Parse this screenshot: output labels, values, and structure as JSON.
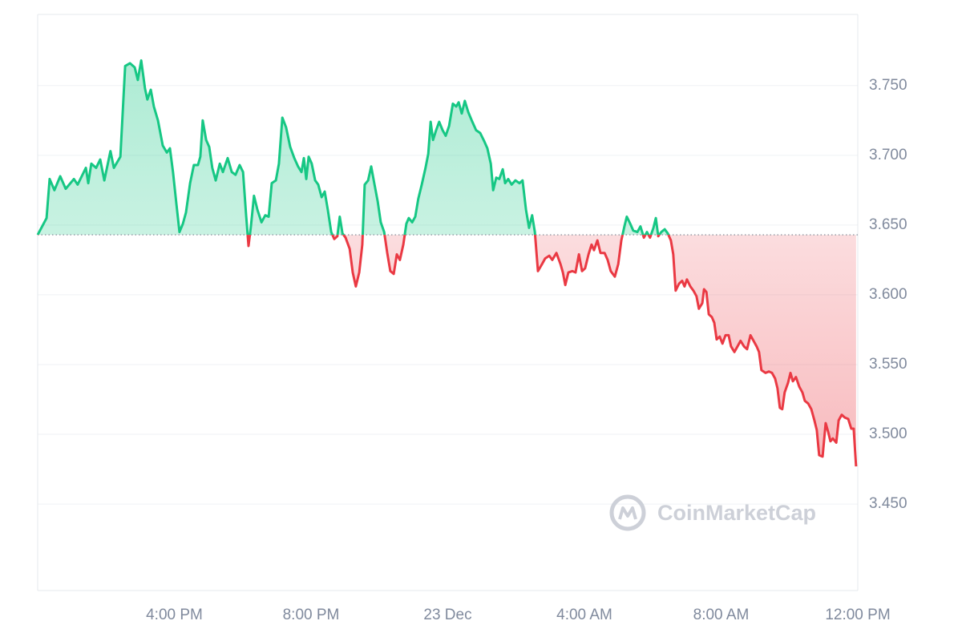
{
  "chart_data": {
    "type": "line",
    "watermark": "CoinMarketCap",
    "baseline": 3.643,
    "color_up": "#16c784",
    "color_down": "#ea3943",
    "xlim": [
      0,
      24
    ],
    "xticks": [
      {
        "value": 4,
        "label": "4:00 PM"
      },
      {
        "value": 8,
        "label": "8:00 PM"
      },
      {
        "value": 12,
        "label": "23 Dec"
      },
      {
        "value": 16,
        "label": "4:00 AM"
      },
      {
        "value": 20,
        "label": "8:00 AM"
      },
      {
        "value": 24,
        "label": "12:00 PM"
      }
    ],
    "ylim": [
      3.388,
      3.801
    ],
    "yticks": [
      {
        "value": 3.45,
        "label": "3.450"
      },
      {
        "value": 3.5,
        "label": "3.500"
      },
      {
        "value": 3.55,
        "label": "3.550"
      },
      {
        "value": 3.6,
        "label": "3.600"
      },
      {
        "value": 3.65,
        "label": "3.650"
      },
      {
        "value": 3.7,
        "label": "3.700"
      },
      {
        "value": 3.75,
        "label": "3.750"
      }
    ],
    "grid": true,
    "x": [
      0,
      0.26,
      0.35,
      0.49,
      0.66,
      0.82,
      1.06,
      1.17,
      1.41,
      1.48,
      1.57,
      1.71,
      1.83,
      1.95,
      2.13,
      2.23,
      2.42,
      2.56,
      2.7,
      2.84,
      2.93,
      3.03,
      3.14,
      3.21,
      3.31,
      3.4,
      3.52,
      3.66,
      3.78,
      3.87,
      3.96,
      4.06,
      4.15,
      4.25,
      4.34,
      4.46,
      4.57,
      4.69,
      4.76,
      4.83,
      4.93,
      5.02,
      5.11,
      5.21,
      5.33,
      5.42,
      5.56,
      5.68,
      5.79,
      5.91,
      6.01,
      6.1,
      6.17,
      6.24,
      6.33,
      6.43,
      6.55,
      6.66,
      6.76,
      6.85,
      6.97,
      7.06,
      7.16,
      7.27,
      7.39,
      7.51,
      7.62,
      7.72,
      7.79,
      7.86,
      7.93,
      8.02,
      8.12,
      8.21,
      8.31,
      8.4,
      8.49,
      8.59,
      8.68,
      8.77,
      8.84,
      8.92,
      9.01,
      9.13,
      9.22,
      9.31,
      9.41,
      9.5,
      9.57,
      9.67,
      9.76,
      9.85,
      9.95,
      10.04,
      10.14,
      10.23,
      10.32,
      10.42,
      10.51,
      10.6,
      10.7,
      10.79,
      10.86,
      10.96,
      11.05,
      11.14,
      11.24,
      11.35,
      11.43,
      11.5,
      11.57,
      11.66,
      11.75,
      11.85,
      11.94,
      12.04,
      12.15,
      12.25,
      12.32,
      12.41,
      12.5,
      12.6,
      12.72,
      12.83,
      12.95,
      13.07,
      13.16,
      13.26,
      13.33,
      13.42,
      13.51,
      13.61,
      13.68,
      13.77,
      13.87,
      13.98,
      14.1,
      14.19,
      14.29,
      14.38,
      14.47,
      14.55,
      14.64,
      14.76,
      14.85,
      14.97,
      15.06,
      15.18,
      15.3,
      15.37,
      15.44,
      15.53,
      15.65,
      15.74,
      15.84,
      15.93,
      16.02,
      16.12,
      16.21,
      16.28,
      16.38,
      16.47,
      16.59,
      16.68,
      16.77,
      16.89,
      16.99,
      17.08,
      17.17,
      17.24,
      17.34,
      17.43,
      17.55,
      17.64,
      17.74,
      17.83,
      17.92,
      18.02,
      18.09,
      18.16,
      18.25,
      18.35,
      18.44,
      18.53,
      18.6,
      18.67,
      18.77,
      18.86,
      18.93,
      19.0,
      19.1,
      19.19,
      19.28,
      19.35,
      19.45,
      19.5,
      19.57,
      19.64,
      19.73,
      19.8,
      19.87,
      19.96,
      20.04,
      20.13,
      20.22,
      20.29,
      20.39,
      20.48,
      20.57,
      20.67,
      20.76,
      20.86,
      20.95,
      21.04,
      21.11,
      21.18,
      21.3,
      21.4,
      21.49,
      21.58,
      21.65,
      21.72,
      21.79,
      21.86,
      21.96,
      22.03,
      22.1,
      22.19,
      22.29,
      22.38,
      22.45,
      22.55,
      22.64,
      22.73,
      22.8,
      22.87,
      22.97,
      23.06,
      23.13,
      23.2,
      23.27,
      23.37,
      23.44,
      23.53,
      23.62,
      23.72,
      23.81,
      23.88,
      23.95
    ],
    "values": [
      3.643,
      3.655,
      3.683,
      3.675,
      3.685,
      3.676,
      3.683,
      3.679,
      3.691,
      3.68,
      3.694,
      3.691,
      3.697,
      3.682,
      3.703,
      3.691,
      3.699,
      3.764,
      3.766,
      3.763,
      3.754,
      3.768,
      3.748,
      3.74,
      3.747,
      3.735,
      3.725,
      3.707,
      3.702,
      3.705,
      3.688,
      3.665,
      3.645,
      3.651,
      3.659,
      3.68,
      3.693,
      3.693,
      3.699,
      3.725,
      3.711,
      3.706,
      3.691,
      3.682,
      3.694,
      3.688,
      3.698,
      3.688,
      3.686,
      3.693,
      3.688,
      3.657,
      3.635,
      3.649,
      3.671,
      3.661,
      3.652,
      3.657,
      3.656,
      3.68,
      3.682,
      3.694,
      3.727,
      3.72,
      3.706,
      3.698,
      3.692,
      3.688,
      3.698,
      3.683,
      3.699,
      3.694,
      3.682,
      3.679,
      3.67,
      3.674,
      3.661,
      3.645,
      3.64,
      3.642,
      3.656,
      3.644,
      3.641,
      3.633,
      3.616,
      3.606,
      3.616,
      3.636,
      3.679,
      3.682,
      3.692,
      3.68,
      3.667,
      3.652,
      3.645,
      3.63,
      3.617,
      3.615,
      3.629,
      3.625,
      3.636,
      3.651,
      3.655,
      3.652,
      3.656,
      3.669,
      3.679,
      3.691,
      3.701,
      3.724,
      3.711,
      3.718,
      3.724,
      3.718,
      3.714,
      3.721,
      3.737,
      3.735,
      3.738,
      3.73,
      3.739,
      3.731,
      3.724,
      3.718,
      3.716,
      3.71,
      3.705,
      3.694,
      3.675,
      3.684,
      3.683,
      3.69,
      3.68,
      3.683,
      3.679,
      3.682,
      3.68,
      3.682,
      3.661,
      3.648,
      3.657,
      3.645,
      3.617,
      3.622,
      3.626,
      3.628,
      3.625,
      3.63,
      3.622,
      3.616,
      3.607,
      3.616,
      3.617,
      3.616,
      3.629,
      3.617,
      3.619,
      3.629,
      3.636,
      3.632,
      3.639,
      3.63,
      3.63,
      3.625,
      3.617,
      3.613,
      3.622,
      3.639,
      3.649,
      3.656,
      3.651,
      3.646,
      3.645,
      3.649,
      3.641,
      3.645,
      3.641,
      3.648,
      3.655,
      3.642,
      3.645,
      3.647,
      3.644,
      3.639,
      3.629,
      3.603,
      3.608,
      3.61,
      3.606,
      3.611,
      3.606,
      3.603,
      3.599,
      3.59,
      3.594,
      3.604,
      3.602,
      3.586,
      3.584,
      3.58,
      3.568,
      3.57,
      3.565,
      3.571,
      3.571,
      3.563,
      3.559,
      3.563,
      3.567,
      3.563,
      3.561,
      3.571,
      3.567,
      3.563,
      3.559,
      3.546,
      3.544,
      3.545,
      3.544,
      3.54,
      3.533,
      3.519,
      3.518,
      3.53,
      3.537,
      3.544,
      3.538,
      3.541,
      3.534,
      3.53,
      3.524,
      3.522,
      3.518,
      3.51,
      3.503,
      3.485,
      3.484,
      3.508,
      3.502,
      3.495,
      3.497,
      3.494,
      3.51,
      3.514,
      3.512,
      3.511,
      3.504,
      3.504,
      3.477
    ]
  }
}
